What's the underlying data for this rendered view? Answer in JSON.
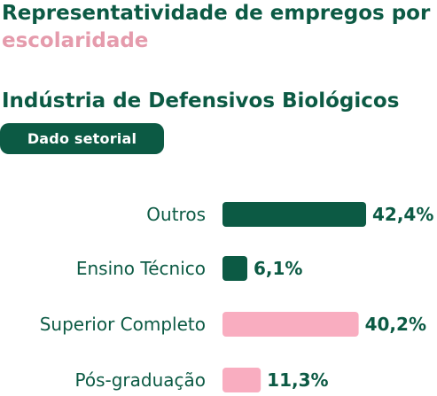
{
  "header": {
    "title_main": "Representatividade de empregos por",
    "title_accent": "escolaridade",
    "subtitle": "Indústria de Defensivos Biológicos",
    "badge": "Dado setorial"
  },
  "colors": {
    "dark_green": "#0c5a44",
    "pink": "#f9adc0",
    "accent_text": "#e59bac"
  },
  "chart_data": {
    "type": "bar",
    "orientation": "horizontal",
    "categories": [
      "Outros",
      "Ensino Técnico",
      "Superior Completo",
      "Pós-graduação"
    ],
    "values": [
      42.4,
      6.1,
      40.2,
      11.3
    ],
    "value_labels": [
      "42,4%",
      "6,1%",
      "40,2%",
      "11,3%"
    ],
    "bar_colors": [
      "#0c5a44",
      "#0c5a44",
      "#f9adc0",
      "#f9adc0"
    ],
    "title": "",
    "xlabel": "",
    "ylabel": "",
    "xlim": [
      0,
      42.4
    ],
    "grid": false,
    "legend": "none"
  }
}
